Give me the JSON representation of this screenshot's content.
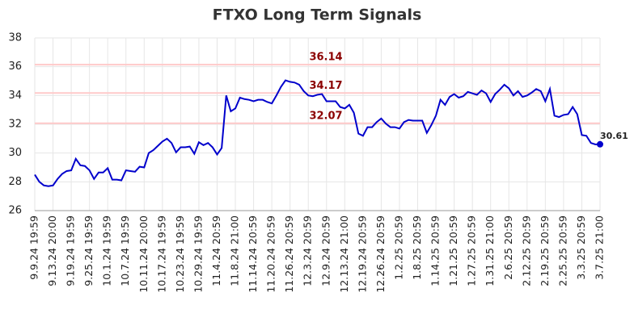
{
  "chart_data": {
    "type": "line",
    "title": "FTXO Long Term Signals",
    "categories": [
      "9.9.24 19:59",
      null,
      null,
      null,
      "9.13.24 20:00",
      null,
      null,
      null,
      "9.19.24 19:59",
      null,
      null,
      null,
      "9.25.24 19:59",
      null,
      null,
      null,
      "10.1.24 19:59",
      null,
      null,
      null,
      "10.7.24 19:59",
      null,
      null,
      null,
      "10.11.24 20:00",
      null,
      null,
      null,
      "10.17.24 19:59",
      null,
      null,
      null,
      "10.23.24 19:59",
      null,
      null,
      null,
      "10.29.24 19:59",
      null,
      null,
      null,
      "11.4.24 20:59",
      null,
      null,
      null,
      "11.8.24 21:00",
      null,
      null,
      null,
      "11.14.24 20:59",
      null,
      null,
      null,
      "11.20.24 20:59",
      null,
      null,
      null,
      "11.26.24 20:59",
      null,
      null,
      null,
      "12.3.24 20:59",
      null,
      null,
      null,
      "12.9.24 20:59",
      null,
      null,
      null,
      "12.13.24 21:00",
      null,
      null,
      null,
      "12.19.24 20:59",
      null,
      null,
      null,
      "12.26.24 20:59",
      null,
      null,
      null,
      "1.2.25 20:59",
      null,
      null,
      null,
      "1.8.25 20:59",
      null,
      null,
      null,
      "1.14.25 20:59",
      null,
      null,
      null,
      "1.21.25 20:59",
      null,
      null,
      null,
      "1.27.25 20:59",
      null,
      null,
      null,
      "1.31.25 21:00",
      null,
      null,
      null,
      "2.6.25 20:59",
      null,
      null,
      null,
      "2.12.25 20:59",
      null,
      null,
      null,
      "2.19.25 20:59",
      null,
      null,
      null,
      "2.25.25 20:59",
      null,
      null,
      null,
      "3.3.25 20:59",
      null,
      null,
      null,
      "3.7.25 21:00"
    ],
    "values": [
      28.5,
      28.0,
      27.75,
      27.7,
      27.75,
      28.2,
      28.55,
      28.75,
      28.8,
      29.6,
      29.15,
      29.1,
      28.8,
      28.2,
      28.65,
      28.65,
      28.95,
      28.15,
      28.15,
      28.1,
      28.8,
      28.75,
      28.7,
      29.05,
      29.0,
      30.0,
      30.2,
      30.5,
      30.8,
      31.0,
      30.7,
      30.05,
      30.4,
      30.4,
      30.45,
      29.95,
      30.75,
      30.55,
      30.7,
      30.4,
      29.9,
      30.35,
      34.0,
      32.9,
      33.1,
      33.85,
      33.75,
      33.7,
      33.6,
      33.7,
      33.7,
      33.55,
      33.45,
      34.0,
      34.6,
      35.05,
      34.95,
      34.9,
      34.75,
      34.3,
      34.0,
      33.95,
      34.05,
      34.1,
      33.6,
      33.6,
      33.6,
      33.2,
      33.1,
      33.35,
      32.8,
      31.35,
      31.2,
      31.8,
      31.8,
      32.15,
      32.4,
      32.05,
      31.8,
      31.8,
      31.7,
      32.15,
      32.3,
      32.25,
      32.25,
      32.25,
      31.4,
      31.95,
      32.6,
      33.7,
      33.35,
      33.9,
      34.1,
      33.85,
      33.95,
      34.25,
      34.15,
      34.05,
      34.35,
      34.15,
      33.55,
      34.1,
      34.4,
      34.75,
      34.5,
      34.0,
      34.3,
      33.9,
      34.0,
      34.2,
      34.45,
      34.3,
      33.6,
      34.45,
      32.6,
      32.5,
      32.65,
      32.7,
      33.2,
      32.7,
      31.25,
      31.2,
      30.7,
      30.6,
      30.61
    ],
    "color": "#0000cc",
    "reference_lines": [
      36.14,
      34.17,
      32.07
    ],
    "reference_color": "#ffc9c9",
    "reference_label_color": "#8b0000",
    "ylim": [
      26,
      38
    ],
    "yticks": [
      26,
      28,
      30,
      32,
      34,
      36,
      38
    ],
    "grid": true
  }
}
